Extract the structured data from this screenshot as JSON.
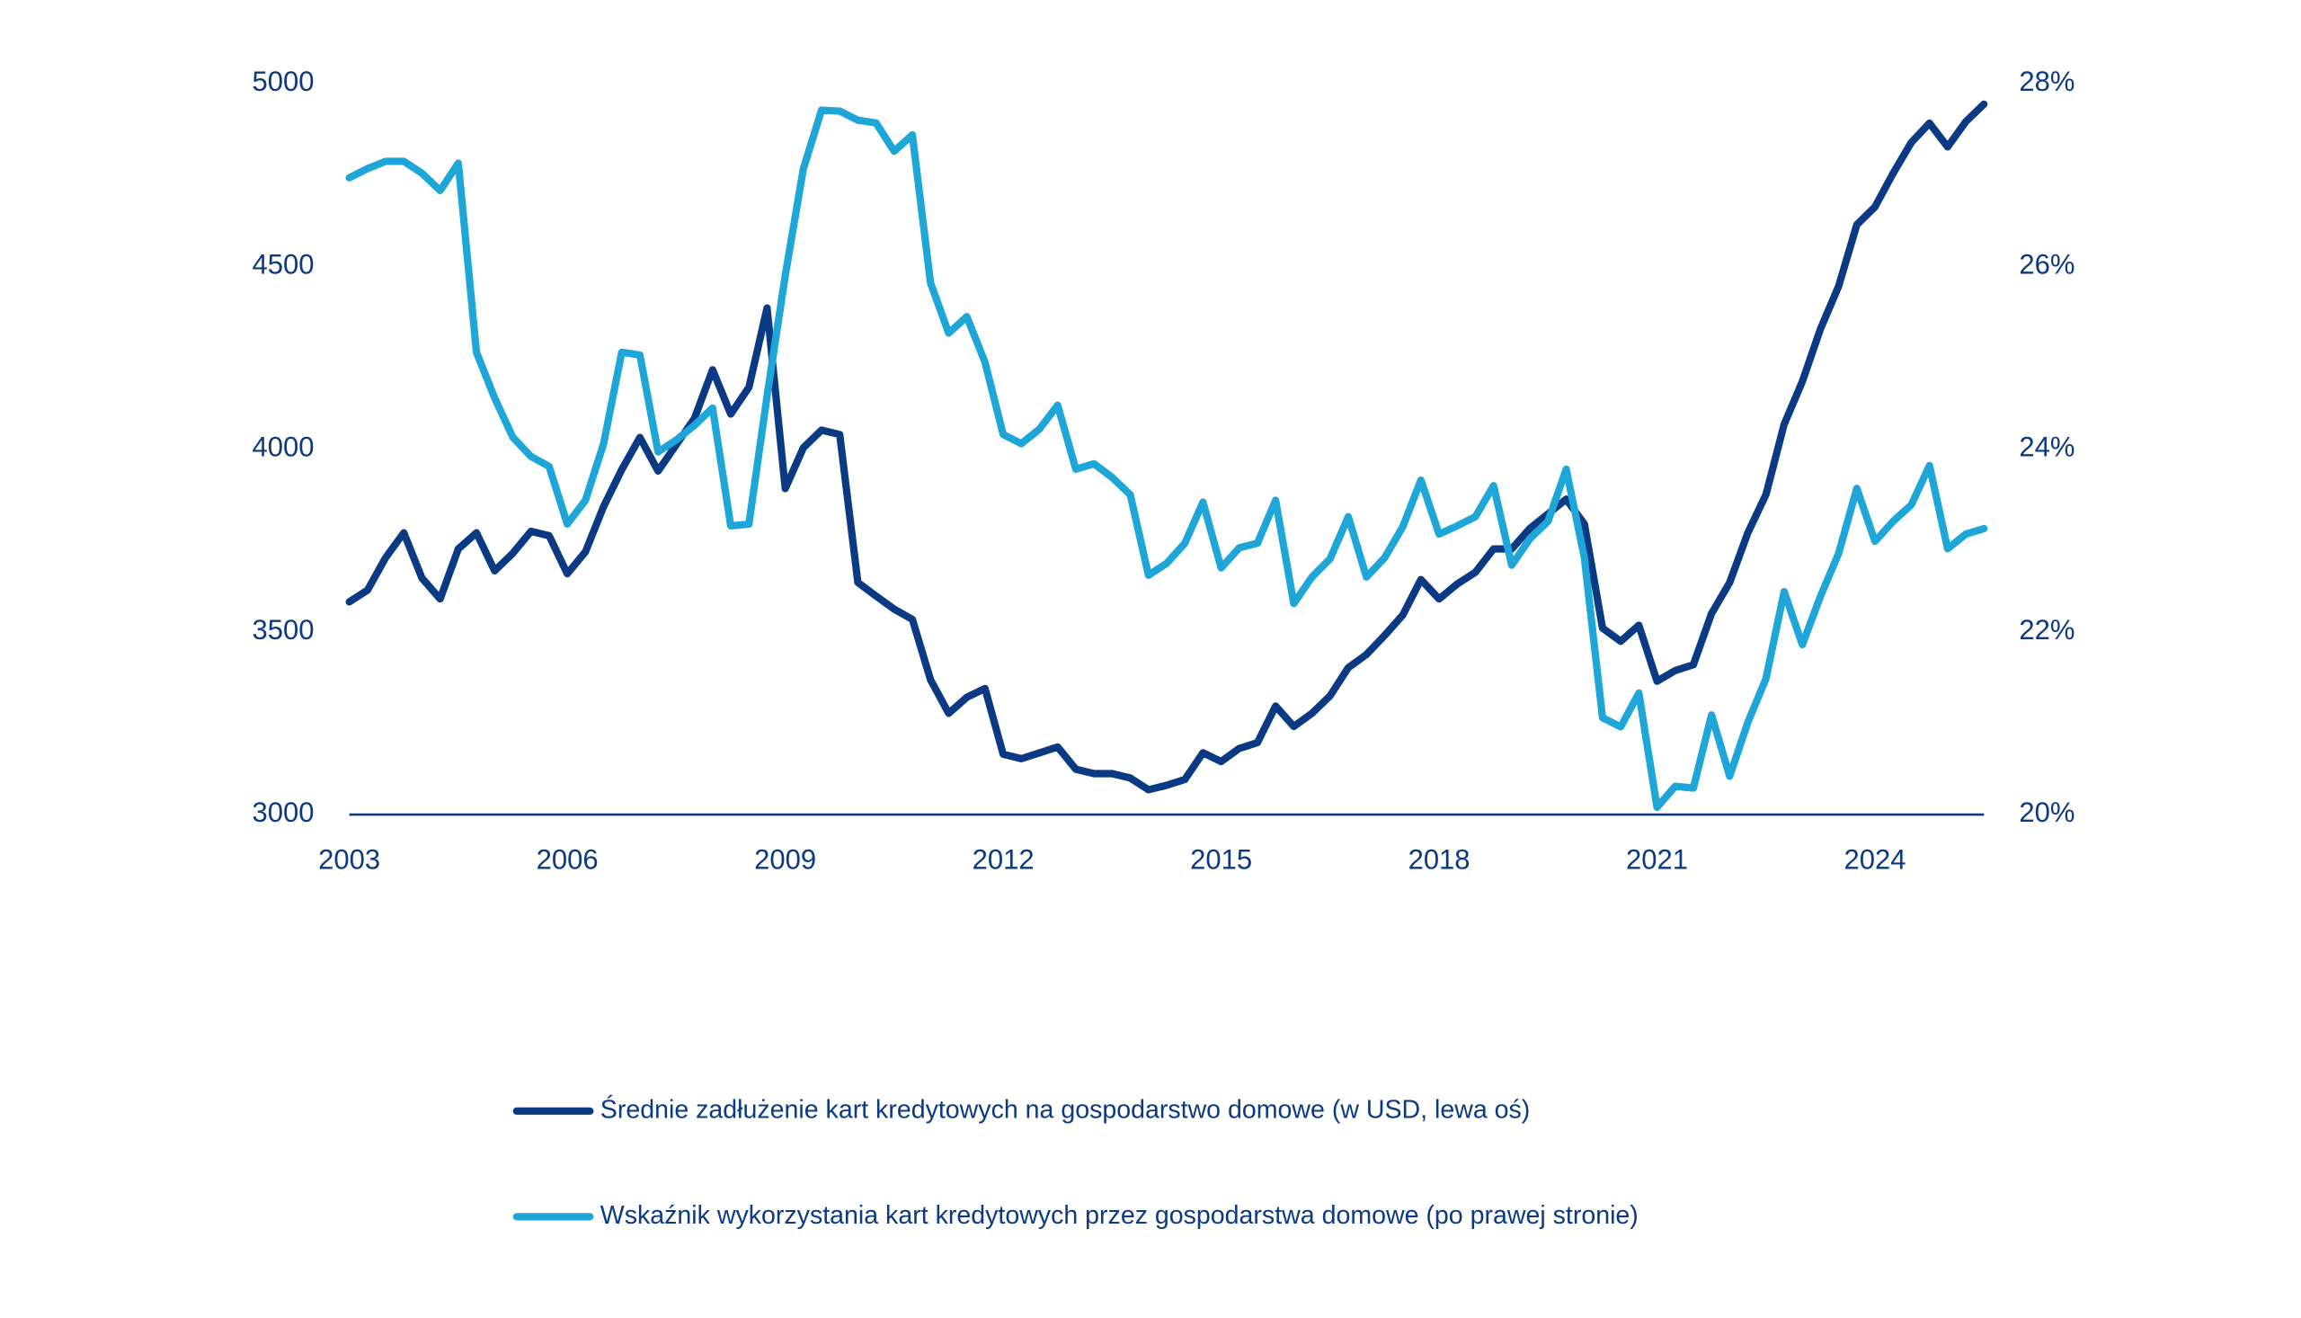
{
  "chart_data": {
    "type": "line",
    "x": [
      2003,
      2003.25,
      2003.5,
      2003.75,
      2004,
      2004.25,
      2004.5,
      2004.75,
      2005,
      2005.25,
      2005.5,
      2005.75,
      2006,
      2006.25,
      2006.5,
      2006.75,
      2007,
      2007.25,
      2007.5,
      2007.75,
      2008,
      2008.25,
      2008.5,
      2008.75,
      2009,
      2009.25,
      2009.5,
      2009.75,
      2010,
      2010.25,
      2010.5,
      2010.75,
      2011,
      2011.25,
      2011.5,
      2011.75,
      2012,
      2012.25,
      2012.5,
      2012.75,
      2013,
      2013.25,
      2013.5,
      2013.75,
      2014,
      2014.25,
      2014.5,
      2014.75,
      2015,
      2015.25,
      2015.5,
      2015.75,
      2016,
      2016.25,
      2016.5,
      2016.75,
      2017,
      2017.25,
      2017.5,
      2017.75,
      2018,
      2018.25,
      2018.5,
      2018.75,
      2019,
      2019.25,
      2019.5,
      2019.75,
      2020,
      2020.25,
      2020.5,
      2020.75,
      2021,
      2021.25,
      2021.5,
      2021.75,
      2022,
      2022.25,
      2022.5,
      2022.75,
      2023,
      2023.25,
      2023.5,
      2023.75,
      2024,
      2024.25,
      2024.5,
      2024.75,
      2025,
      2025.25,
      2025.5
    ],
    "series": [
      {
        "name": "Średnie zadłużenie kart kredytowych na gospodarstwo domowe (w USD, lewa oś)",
        "color": "#0b3a84",
        "values": [
          3582,
          3614,
          3703,
          3771,
          3647,
          3590,
          3727,
          3771,
          3667,
          3715,
          3775,
          3763,
          3659,
          3719,
          3843,
          3944,
          4032,
          3940,
          4012,
          4084,
          4217,
          4096,
          4169,
          4386,
          3892,
          4004,
          4052,
          4040,
          3635,
          3598,
          3562,
          3534,
          3369,
          3277,
          3321,
          3345,
          3165,
          3153,
          3169,
          3185,
          3124,
          3112,
          3112,
          3100,
          3068,
          3080,
          3096,
          3169,
          3145,
          3181,
          3197,
          3297,
          3241,
          3277,
          3325,
          3402,
          3438,
          3490,
          3546,
          3643,
          3590,
          3631,
          3663,
          3727,
          3727,
          3783,
          3823,
          3863,
          3795,
          3510,
          3474,
          3518,
          3365,
          3394,
          3410,
          3550,
          3635,
          3771,
          3876,
          4068,
          4185,
          4329,
          4446,
          4614,
          4663,
          4755,
          4839,
          4892,
          4827,
          4896,
          4944
        ]
      },
      {
        "name": "Wskaźnik wykorzystania kart kredytowych przez gospodarstwa domowe (po prawej stronie)",
        "color": "#1ea6d8",
        "axis": "y2",
        "values": [
          26.97,
          27.07,
          27.15,
          27.15,
          27.02,
          26.83,
          27.13,
          25.06,
          24.56,
          24.13,
          23.92,
          23.81,
          23.18,
          23.44,
          24.06,
          25.06,
          25.03,
          23.97,
          24.1,
          24.26,
          24.45,
          23.16,
          23.18,
          24.58,
          25.9,
          27.07,
          27.71,
          27.7,
          27.6,
          27.57,
          27.26,
          27.44,
          25.82,
          25.27,
          25.45,
          24.95,
          24.16,
          24.06,
          24.22,
          24.48,
          23.78,
          23.84,
          23.69,
          23.5,
          22.62,
          22.75,
          22.97,
          23.42,
          22.7,
          22.92,
          22.97,
          23.44,
          22.31,
          22.6,
          22.8,
          23.26,
          22.6,
          22.81,
          23.15,
          23.66,
          23.07,
          23.16,
          23.26,
          23.6,
          22.73,
          23.02,
          23.21,
          23.78,
          22.81,
          21.06,
          20.96,
          21.33,
          20.08,
          20.31,
          20.29,
          21.09,
          20.42,
          21.01,
          21.49,
          22.44,
          21.86,
          22.39,
          22.86,
          23.57,
          22.99,
          23.21,
          23.39,
          23.82,
          22.91,
          23.07,
          23.13
        ]
      }
    ],
    "xlim": [
      2003,
      2025.5
    ],
    "xticks": [
      2003,
      2006,
      2009,
      2012,
      2015,
      2018,
      2021,
      2024
    ],
    "ylim": [
      3000,
      5000
    ],
    "yticks": [
      3000,
      3500,
      4000,
      4500,
      5000
    ],
    "y2lim": [
      20,
      28
    ],
    "y2ticks": [
      {
        "value": 20,
        "label": "20%"
      },
      {
        "value": 22,
        "label": "22%"
      },
      {
        "value": 24,
        "label": "24%"
      },
      {
        "value": 26,
        "label": "26%"
      },
      {
        "value": 28,
        "label": "28%"
      }
    ],
    "grid": false,
    "legend": "bottom"
  }
}
